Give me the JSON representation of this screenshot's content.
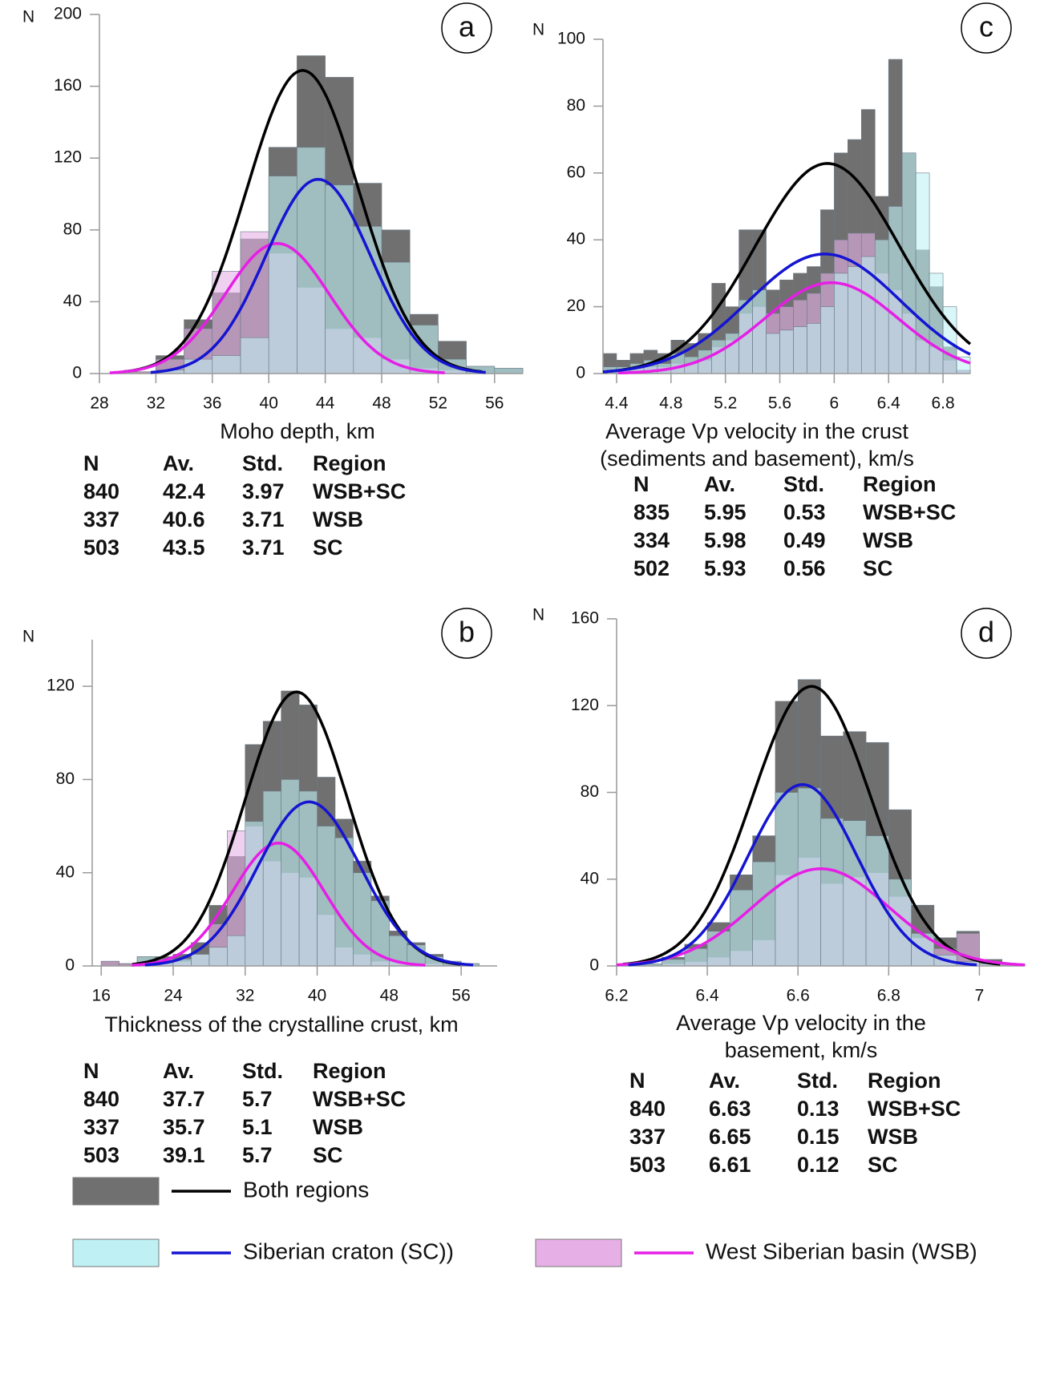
{
  "chart_data": [
    {
      "type": "histogram",
      "panel_label": "a",
      "y_label": "N",
      "xlabel": [
        "Moho depth, km"
      ],
      "bins": [
        30,
        32,
        34,
        36,
        38,
        40,
        42,
        44,
        46,
        48,
        50,
        52,
        54,
        56,
        58
      ],
      "series": [
        {
          "color": "#707070",
          "values": [
            1,
            10,
            30,
            45,
            75,
            126,
            177,
            165,
            106,
            80,
            33,
            18,
            4,
            3
          ]
        },
        {
          "color": "#bff0f4",
          "values": [
            0,
            2,
            8,
            10,
            20,
            110,
            126,
            105,
            82,
            62,
            27,
            8,
            4,
            3
          ]
        },
        {
          "color": "#e6b0e6",
          "values": [
            1,
            8,
            25,
            57,
            79,
            67,
            48,
            25,
            20,
            8,
            3,
            2,
            0,
            0
          ]
        }
      ],
      "xlim": [
        28,
        58
      ],
      "ylim": [
        0,
        200
      ],
      "xticks": [
        28,
        32,
        36,
        40,
        44,
        48,
        52,
        56
      ],
      "yticks": [
        0,
        40,
        80,
        120,
        160,
        200
      ],
      "table": {
        "columns": [
          "N",
          "Av.",
          "Std.",
          "Region"
        ],
        "rows": [
          [
            840,
            42.4,
            3.97,
            "WSB+SC"
          ],
          [
            337,
            40.6,
            3.71,
            "WSB"
          ],
          [
            503,
            43.5,
            3.71,
            "SC"
          ]
        ]
      }
    },
    {
      "type": "histogram",
      "panel_label": "c",
      "y_label": "N",
      "xlabel": [
        "Average Vp velocity in the crust",
        "(sediments and basement), km/s"
      ],
      "bins": [
        4.3,
        4.4,
        4.5,
        4.6,
        4.7,
        4.8,
        4.9,
        5.0,
        5.1,
        5.2,
        5.3,
        5.4,
        5.5,
        5.6,
        5.7,
        5.8,
        5.9,
        6.0,
        6.1,
        6.2,
        6.3,
        6.4,
        6.5,
        6.6,
        6.7,
        6.8,
        6.9,
        7.0
      ],
      "series": [
        {
          "color": "#707070",
          "values": [
            6,
            4,
            6,
            7,
            6,
            10,
            9,
            12,
            27,
            20,
            43,
            43,
            25,
            28,
            30,
            32,
            49,
            66,
            70,
            79,
            53,
            94,
            66,
            37,
            26,
            8,
            1
          ]
        },
        {
          "color": "#bff0f4",
          "values": [
            2,
            2,
            3,
            4,
            3,
            6,
            5,
            7,
            10,
            12,
            22,
            25,
            12,
            13,
            14,
            15,
            20,
            30,
            32,
            35,
            40,
            50,
            66,
            60,
            30,
            20,
            5
          ]
        },
        {
          "color": "#e6b0e6",
          "values": [
            1,
            1,
            2,
            2,
            2,
            3,
            3,
            4,
            8,
            10,
            18,
            20,
            18,
            20,
            22,
            24,
            30,
            40,
            42,
            42,
            30,
            25,
            18,
            10,
            8,
            4,
            1
          ]
        }
      ],
      "xlim": [
        4.3,
        7.0
      ],
      "ylim": [
        0,
        100
      ],
      "xticks": [
        4.4,
        4.8,
        5.2,
        5.6,
        6,
        6.4,
        6.8
      ],
      "yticks": [
        0,
        20,
        40,
        60,
        80,
        100
      ],
      "table": {
        "columns": [
          "N",
          "Av.",
          "Std.",
          "Region"
        ],
        "rows": [
          [
            835,
            5.95,
            0.53,
            "WSB+SC"
          ],
          [
            334,
            5.98,
            0.49,
            "WSB"
          ],
          [
            502,
            5.93,
            0.56,
            "SC"
          ]
        ]
      }
    },
    {
      "type": "histogram",
      "panel_label": "b",
      "y_label": "N",
      "xlabel": [
        "Thickness of the crystalline crust, km"
      ],
      "bins": [
        16,
        18,
        20,
        22,
        24,
        26,
        28,
        30,
        32,
        34,
        36,
        38,
        40,
        42,
        44,
        46,
        48,
        50,
        52,
        54,
        56,
        58
      ],
      "series": [
        {
          "color": "#707070",
          "values": [
            2,
            1,
            4,
            4,
            5,
            10,
            26,
            47,
            95,
            105,
            118,
            112,
            81,
            63,
            45,
            30,
            15,
            10,
            5,
            2,
            1
          ]
        },
        {
          "color": "#bff0f4",
          "values": [
            0,
            0,
            4,
            3,
            3,
            5,
            8,
            13,
            62,
            75,
            80,
            75,
            60,
            55,
            40,
            28,
            13,
            9,
            4,
            2,
            1
          ]
        },
        {
          "color": "#e6b0e6",
          "values": [
            2,
            1,
            1,
            1,
            2,
            5,
            18,
            58,
            60,
            45,
            40,
            38,
            22,
            8,
            5,
            2,
            2,
            1,
            1,
            0,
            0
          ]
        }
      ],
      "xlim": [
        15,
        60
      ],
      "ylim": [
        0,
        140
      ],
      "xticks": [
        16,
        24,
        32,
        40,
        48,
        56
      ],
      "yticks": [
        0,
        40,
        80,
        120
      ],
      "table": {
        "columns": [
          "N",
          "Av.",
          "Std.",
          "Region"
        ],
        "rows": [
          [
            840,
            37.7,
            5.7,
            "WSB+SC"
          ],
          [
            337,
            35.7,
            5.1,
            "WSB"
          ],
          [
            503,
            39.1,
            5.7,
            "SC"
          ]
        ]
      }
    },
    {
      "type": "histogram",
      "panel_label": "d",
      "y_label": "N",
      "xlabel": [
        "Average Vp velocity in the",
        "basement, km/s"
      ],
      "bins": [
        6.25,
        6.3,
        6.35,
        6.4,
        6.45,
        6.5,
        6.55,
        6.6,
        6.65,
        6.7,
        6.75,
        6.8,
        6.85,
        6.9,
        6.95,
        7.0,
        7.05,
        7.1
      ],
      "series": [
        {
          "color": "#707070",
          "values": [
            1,
            4,
            10,
            20,
            42,
            60,
            122,
            132,
            106,
            108,
            103,
            72,
            28,
            13,
            16,
            3,
            1
          ]
        },
        {
          "color": "#bff0f4",
          "values": [
            1,
            3,
            8,
            16,
            35,
            48,
            80,
            82,
            68,
            67,
            60,
            40,
            15,
            5,
            2,
            1,
            0
          ]
        },
        {
          "color": "#e6b0e6",
          "values": [
            0,
            1,
            2,
            4,
            7,
            12,
            42,
            50,
            38,
            41,
            43,
            32,
            13,
            8,
            15,
            2,
            1
          ]
        }
      ],
      "xlim": [
        6.2,
        7.1
      ],
      "ylim": [
        0,
        160
      ],
      "xticks": [
        6.2,
        6.4,
        6.6,
        6.8,
        7
      ],
      "yticks": [
        0,
        40,
        80,
        120,
        160
      ],
      "table": {
        "columns": [
          "N",
          "Av.",
          "Std.",
          "Region"
        ],
        "rows": [
          [
            840,
            6.63,
            0.13,
            "WSB+SC"
          ],
          [
            337,
            6.65,
            0.15,
            "WSB"
          ],
          [
            503,
            6.61,
            0.12,
            "SC"
          ]
        ]
      }
    }
  ],
  "legend": [
    {
      "name": "Both regions",
      "fill": "#707070",
      "line": "#000000"
    },
    {
      "name": "Siberian craton (SC))",
      "fill": "#bff0f4",
      "line": "#1414d2"
    },
    {
      "name": "West Siberian basin (WSB)",
      "fill": "#e6b0e6",
      "line": "#e61ee6"
    }
  ]
}
